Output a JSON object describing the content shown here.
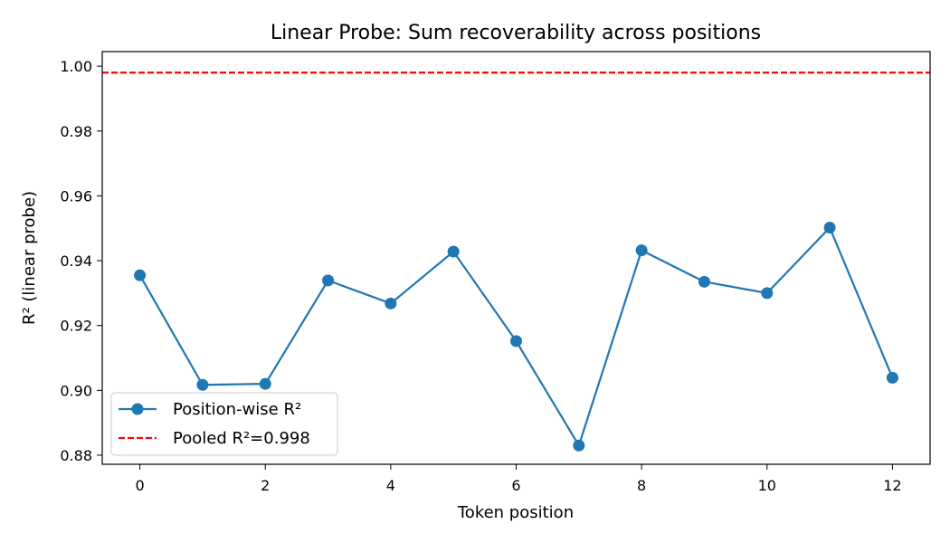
{
  "chart_data": {
    "type": "line",
    "title": "Linear Probe: Sum recoverability across positions",
    "xlabel": "Token position",
    "ylabel": "R² (linear probe)",
    "xlim": [
      -0.6,
      12.6
    ],
    "ylim": [
      0.8772,
      1.0045
    ],
    "xticks": [
      0,
      2,
      4,
      6,
      8,
      10,
      12
    ],
    "xtick_labels": [
      "0",
      "2",
      "4",
      "6",
      "8",
      "10",
      "12"
    ],
    "yticks": [
      0.88,
      0.9,
      0.92,
      0.94,
      0.96,
      0.98,
      1.0
    ],
    "ytick_labels": [
      "0.88",
      "0.90",
      "0.92",
      "0.94",
      "0.96",
      "0.98",
      "1.00"
    ],
    "grid": false,
    "legend_position": "lower-left",
    "series": [
      {
        "name": "Position-wise R²",
        "style": "line-with-circle-markers",
        "color": "#1f77b4",
        "x": [
          0,
          1,
          2,
          3,
          4,
          5,
          6,
          7,
          8,
          9,
          10,
          11,
          12
        ],
        "y": [
          0.9355,
          0.9017,
          0.902,
          0.9339,
          0.9268,
          0.9428,
          0.9152,
          0.883,
          0.9432,
          0.9335,
          0.93,
          0.9502,
          0.9039
        ]
      },
      {
        "name": "Pooled R²=0.998",
        "style": "dashed-horizontal-line",
        "color": "#ff0000",
        "y": 0.998
      }
    ]
  }
}
